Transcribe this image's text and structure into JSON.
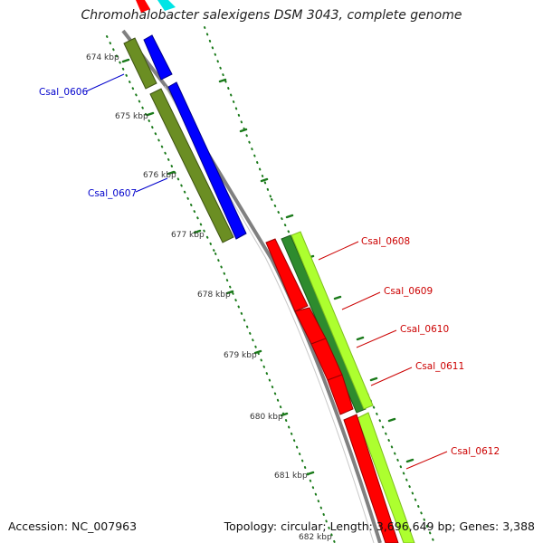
{
  "title": "Chromohalobacter salexigens DSM 3043, complete genome",
  "footer": {
    "accession": "Accession: NC_007963",
    "summary": "Topology: circular; Length: 3,696,649 bp; Genes: 3,388"
  },
  "ticks": [
    {
      "label": "674 kbp"
    },
    {
      "label": "675 kbp"
    },
    {
      "label": "676 kbp"
    },
    {
      "label": "677 kbp"
    },
    {
      "label": "678 kbp"
    },
    {
      "label": "679 kbp"
    },
    {
      "label": "680 kbp"
    },
    {
      "label": "681 kbp"
    },
    {
      "label": "682 kbp"
    }
  ],
  "genes": [
    {
      "label": "Csal_0606",
      "strand": "forward",
      "color": "#0000cc"
    },
    {
      "label": "Csal_0607",
      "strand": "forward",
      "color": "#0000cc"
    },
    {
      "label": "Csal_0608",
      "strand": "reverse",
      "color": "#cc0000"
    },
    {
      "label": "Csal_0609",
      "strand": "reverse",
      "color": "#cc0000"
    },
    {
      "label": "Csal_0610",
      "strand": "reverse",
      "color": "#cc0000"
    },
    {
      "label": "Csal_0611",
      "strand": "reverse",
      "color": "#cc0000"
    },
    {
      "label": "Csal_0612",
      "strand": "reverse",
      "color": "#cc0000"
    }
  ],
  "colors": {
    "forward_cds": "#0000ff",
    "reverse_cds": "#ff0000",
    "backbone": "#888888",
    "tick_ring": "#1a7a1a",
    "cog_olive": "#6b8e23",
    "cog_green": "#2e8b2e",
    "cog_lime": "#adff2f",
    "cog_cyan": "#00e5e5"
  }
}
